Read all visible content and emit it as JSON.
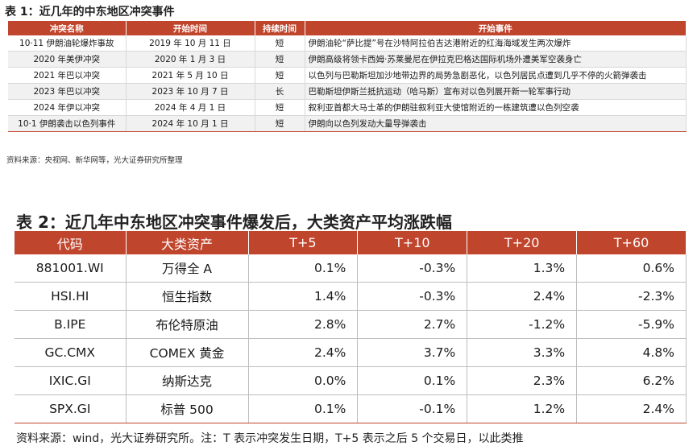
{
  "table1": {
    "title": "表 1：近几年的中东地区冲突事件",
    "headers": [
      "冲突名称",
      "开始时间",
      "持续时间",
      "开始事件"
    ],
    "rows": [
      [
        "10·11 伊朗油轮爆炸事故",
        "2019 年 10 月 11 日",
        "短",
        "伊朗油轮“萨比提”号在沙特阿拉伯吉达港附近的红海海域发生两次爆炸"
      ],
      [
        "2020 年美伊冲突",
        "2020 年 1 月 3 日",
        "短",
        "伊朗高级将领卡西姆·苏莱曼尼在伊拉克巴格达国际机场外遭美军空袭身亡"
      ],
      [
        "2021 年巴以冲突",
        "2021 年 5 月 10 日",
        "短",
        "以色列与巴勒斯坦加沙地带边界的局势急剧恶化，以色列居民点遭到几乎不停的火箭弹袭击"
      ],
      [
        "2023 年巴以冲突",
        "2023 年 10 月 7 日",
        "长",
        "巴勒斯坦伊斯兰抵抗运动（哈马斯）宣布对以色列展开新一轮军事行动"
      ],
      [
        "2024 年伊以冲突",
        "2024 年 4 月 1 日",
        "短",
        "叙利亚首都大马士革的伊朗驻叙利亚大使馆附近的一栋建筑遭以色列空袭"
      ],
      [
        "10·1 伊朗袭击以色列事件",
        "2024 年 10 月 1 日",
        "短",
        "伊朗向以色列发动大量导弹袭击"
      ]
    ],
    "source": "资料来源：央视网、新华网等，光大证券研究所整理"
  },
  "table2": {
    "title": "表 2：近几年中东地区冲突事件爆发后，大类资产平均涨跌幅",
    "headers": [
      "代码",
      "大类资产",
      "T+5",
      "T+10",
      "T+20",
      "T+60"
    ],
    "rows": [
      [
        "881001.WI",
        "万得全 A",
        "0.1%",
        "-0.3%",
        "1.3%",
        "0.6%"
      ],
      [
        "HSI.HI",
        "恒生指数",
        "1.4%",
        "-0.3%",
        "2.4%",
        "-2.3%"
      ],
      [
        "B.IPE",
        "布伦特原油",
        "2.8%",
        "2.7%",
        "-1.2%",
        "-5.9%"
      ],
      [
        "GC.CMX",
        "COMEX 黄金",
        "2.4%",
        "3.7%",
        "3.3%",
        "4.8%"
      ],
      [
        "IXIC.GI",
        "纳斯达克",
        "0.0%",
        "0.1%",
        "2.3%",
        "6.2%"
      ],
      [
        "SPX.GI",
        "标普 500",
        "0.1%",
        "-0.1%",
        "1.2%",
        "2.4%"
      ]
    ],
    "source": "资料来源：wind，光大证券研究所。注：T 表示冲突发生日期，T+5 表示之后 5 个交易日，以此类推"
  },
  "colors": {
    "header_bg": "#c0452d",
    "header_text": "#ffffff",
    "alt_row": "#f1f1f1"
  }
}
